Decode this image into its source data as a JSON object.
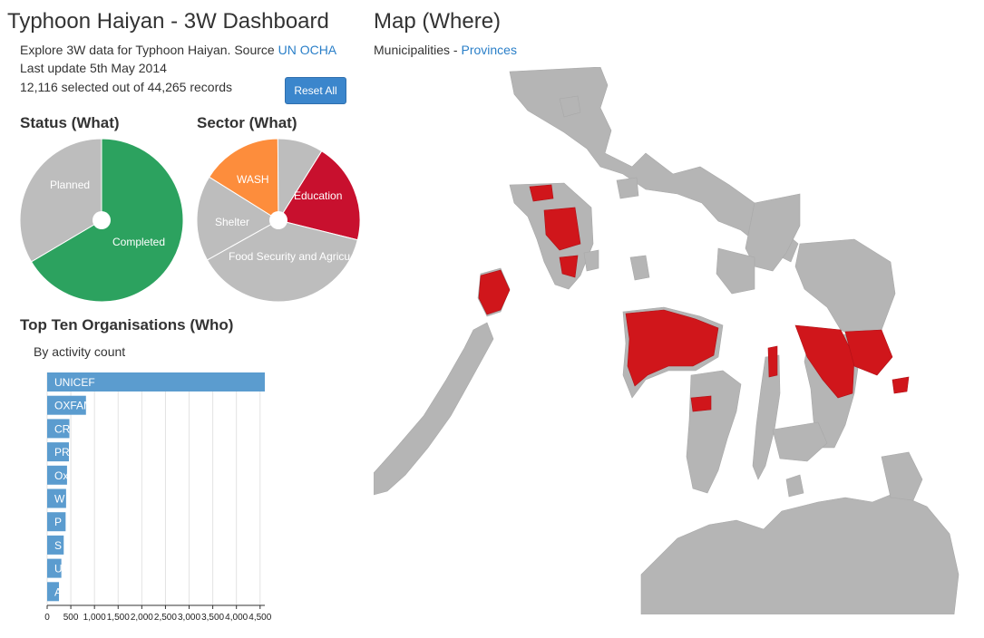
{
  "header": {
    "title": "Typhoon Haiyan - 3W Dashboard",
    "intro_prefix": "Explore 3W data for Typhoon Haiyan. Source ",
    "source_link": "UN OCHA",
    "last_update": "Last update 5th May 2014",
    "selection_count": "12,116 selected out of 44,265 records",
    "reset_label": "Reset All"
  },
  "status_chart": {
    "title": "Status (What)",
    "chart_data": {
      "type": "pie",
      "labels": [
        "Completed",
        "Planned"
      ],
      "values": [
        66.5,
        33.5
      ],
      "colors": [
        "#2ca25f",
        "#bdbdbd"
      ]
    }
  },
  "sector_chart": {
    "title": "Sector (What)",
    "chart_data": {
      "type": "pie",
      "labels": [
        "Education",
        "Food Security and Agricu",
        "Shelter",
        "WASH",
        ""
      ],
      "values": [
        20,
        38,
        17,
        16,
        9
      ],
      "colors": [
        "#c8102e",
        "#bdbdbd",
        "#bdbdbd",
        "#fd8d3c",
        "#bdbdbd"
      ]
    }
  },
  "orgs_chart": {
    "title": "Top Ten Organisations (Who)",
    "subtitle": "By activity count",
    "chart_data": {
      "type": "bar",
      "orientation": "horizontal",
      "categories": [
        "UNICEF",
        "OXFAM",
        "CR",
        "PR",
        "Ox",
        "W",
        "P",
        "S",
        "U",
        "A"
      ],
      "values": [
        4600,
        820,
        470,
        460,
        420,
        400,
        390,
        350,
        300,
        250
      ],
      "xlim": [
        0,
        4600
      ],
      "xticks": [
        "0",
        "500",
        "1,000",
        "1,500",
        "2,000",
        "2,500",
        "3,000",
        "3,500",
        "4,000",
        "4,500"
      ],
      "bar_color": "#5b9ccf"
    }
  },
  "map": {
    "title": "Map (Where)",
    "subtitle_prefix": "Municipalities - ",
    "subtitle_link": "Provinces",
    "land_color": "#b5b5b5",
    "highlight_color": "#d0161b"
  }
}
